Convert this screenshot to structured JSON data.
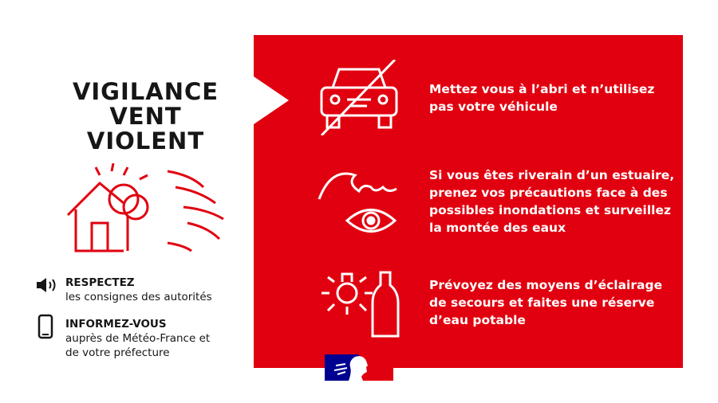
{
  "title": [
    "VIGILANCE",
    "VENT",
    "VIOLENT"
  ],
  "messages": [
    {
      "icon": "no-car-icon",
      "text": "Mettez vous à l’abri et n’utilisez pas votre véhicule"
    },
    {
      "icon": "wave-eye-icon",
      "text": "Si vous êtes riverain d’un estuaire, prenez vos précautions face à des possibles inondations et surveillez la montée des eaux"
    },
    {
      "icon": "light-water-icon",
      "text": "Prévoyez des moyens d’éclairage de secours et faites une réserve d’eau potable"
    }
  ],
  "info": [
    {
      "icon": "speaker-icon",
      "heading": "RESPECTEZ",
      "text": "les consignes des autorités"
    },
    {
      "icon": "phone-icon",
      "heading": "INFORMEZ-VOUS",
      "text": "auprès de Météo-France et de votre préfecture"
    }
  ],
  "colors": {
    "red": "#e1000f",
    "blue": "#000091",
    "text": "#161616"
  }
}
